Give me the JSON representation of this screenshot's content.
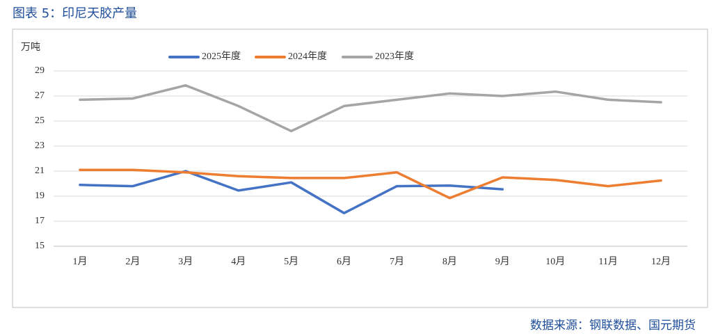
{
  "chart_data": {
    "type": "line",
    "title": "图表 5：印尼天胶产量",
    "y_axis_label": "万吨",
    "source": "数据来源：钢联数据、国元期货",
    "categories": [
      "1月",
      "2月",
      "3月",
      "4月",
      "5月",
      "6月",
      "7月",
      "8月",
      "9月",
      "10月",
      "11月",
      "12月"
    ],
    "series": [
      {
        "name": "2025年度",
        "color": "#4472c4",
        "values": [
          19.9,
          19.8,
          21.0,
          19.45,
          20.1,
          17.65,
          19.8,
          19.85,
          19.55,
          null,
          null,
          null
        ]
      },
      {
        "name": "2024年度",
        "color": "#ed7d31",
        "values": [
          21.1,
          21.1,
          20.9,
          20.6,
          20.45,
          20.45,
          20.9,
          18.85,
          20.5,
          20.3,
          19.8,
          20.25
        ]
      },
      {
        "name": "2023年度",
        "color": "#a5a5a5",
        "values": [
          26.7,
          26.8,
          27.85,
          26.2,
          24.2,
          26.2,
          26.7,
          27.2,
          27.0,
          27.35,
          26.7,
          26.5
        ]
      }
    ],
    "ylim": [
      15,
      29
    ],
    "yticks": [
      15,
      17,
      19,
      21,
      23,
      25,
      27,
      29
    ],
    "grid": true,
    "legend": "top"
  }
}
